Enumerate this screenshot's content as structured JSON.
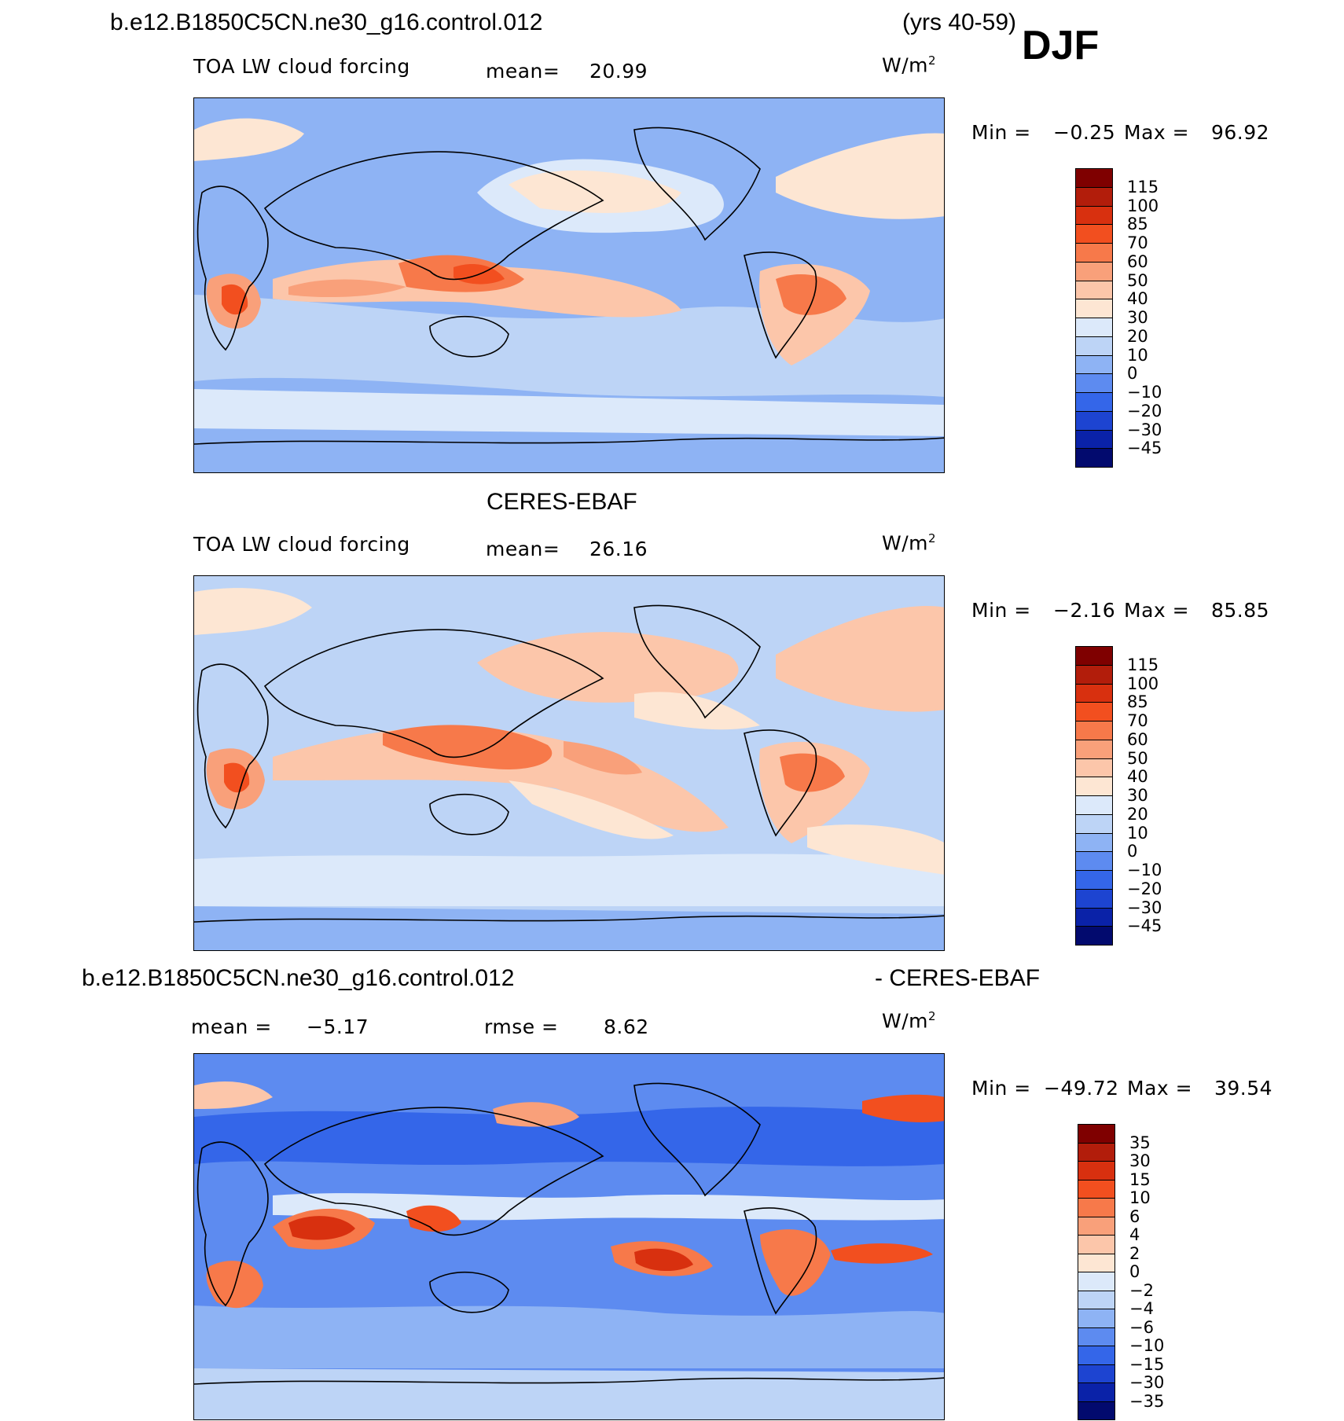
{
  "header": {
    "case_name": "b.e12.B1850C5CN.ne30_g16.control.012",
    "years": "(yrs 40-59)",
    "season": "DJF"
  },
  "panels": [
    {
      "id": "model",
      "title": "",
      "variable": "TOA LW cloud forcing",
      "mean_label": "mean=",
      "mean_value": "20.99",
      "units_base": "W/m",
      "units_exp": "2",
      "min_label": "Min =",
      "min_value": "−0.25",
      "max_label": "Max =",
      "max_value": "96.92"
    },
    {
      "id": "obs",
      "title": "CERES-EBAF",
      "variable": "TOA LW cloud forcing",
      "mean_label": "mean=",
      "mean_value": "26.16",
      "units_base": "W/m",
      "units_exp": "2",
      "min_label": "Min =",
      "min_value": "−2.16",
      "max_label": "Max =",
      "max_value": "85.85"
    },
    {
      "id": "diff",
      "title_left": "b.e12.B1850C5CN.ne30_g16.control.012",
      "title_right": "- CERES-EBAF",
      "mean_label": "mean =",
      "mean_value": "−5.17",
      "rmse_label": "rmse =",
      "rmse_value": "8.62",
      "units_base": "W/m",
      "units_exp": "2",
      "min_label": "Min =",
      "min_value": "−49.72",
      "max_label": "Max =",
      "max_value": "39.54"
    }
  ],
  "chart_data": [
    {
      "type": "heatmap",
      "title": "TOA LW cloud forcing (model, DJF)",
      "units": "W/m2",
      "mean": 20.99,
      "min": -0.25,
      "max": 96.92,
      "colorbar_levels": [
        "115",
        "100",
        "85",
        "70",
        "60",
        "50",
        "40",
        "30",
        "20",
        "10",
        "0",
        "−10",
        "−20",
        "−30",
        "−45"
      ],
      "colorbar_colors": [
        "#7f0000",
        "#b21d0b",
        "#d8300f",
        "#f24f1f",
        "#f7794a",
        "#f9a07a",
        "#fcc6aa",
        "#fde6d3",
        "#dce9fa",
        "#bdd4f6",
        "#8eb3f4",
        "#5d8bf0",
        "#3466e9",
        "#1d44d1",
        "#0a22a8",
        "#020a6e"
      ]
    },
    {
      "type": "heatmap",
      "title": "TOA LW cloud forcing (CERES-EBAF, DJF)",
      "units": "W/m2",
      "mean": 26.16,
      "min": -2.16,
      "max": 85.85,
      "colorbar_levels": [
        "115",
        "100",
        "85",
        "70",
        "60",
        "50",
        "40",
        "30",
        "20",
        "10",
        "0",
        "−10",
        "−20",
        "−30",
        "−45"
      ],
      "colorbar_colors": [
        "#7f0000",
        "#b21d0b",
        "#d8300f",
        "#f24f1f",
        "#f7794a",
        "#f9a07a",
        "#fcc6aa",
        "#fde6d3",
        "#dce9fa",
        "#bdd4f6",
        "#8eb3f4",
        "#5d8bf0",
        "#3466e9",
        "#1d44d1",
        "#0a22a8",
        "#020a6e"
      ]
    },
    {
      "type": "heatmap",
      "title": "model - CERES-EBAF difference (DJF)",
      "units": "W/m2",
      "mean": -5.17,
      "rmse": 8.62,
      "min": -49.72,
      "max": 39.54,
      "colorbar_levels": [
        "35",
        "30",
        "15",
        "10",
        "6",
        "4",
        "2",
        "0",
        "−2",
        "−4",
        "−6",
        "−10",
        "−15",
        "−30",
        "−35"
      ],
      "colorbar_colors": [
        "#7f0000",
        "#b21d0b",
        "#d8300f",
        "#f24f1f",
        "#f7794a",
        "#f9a07a",
        "#fcc6aa",
        "#fde6d3",
        "#dce9fa",
        "#bdd4f6",
        "#8eb3f4",
        "#5d8bf0",
        "#3466e9",
        "#1d44d1",
        "#0a22a8",
        "#020a6e"
      ]
    }
  ]
}
